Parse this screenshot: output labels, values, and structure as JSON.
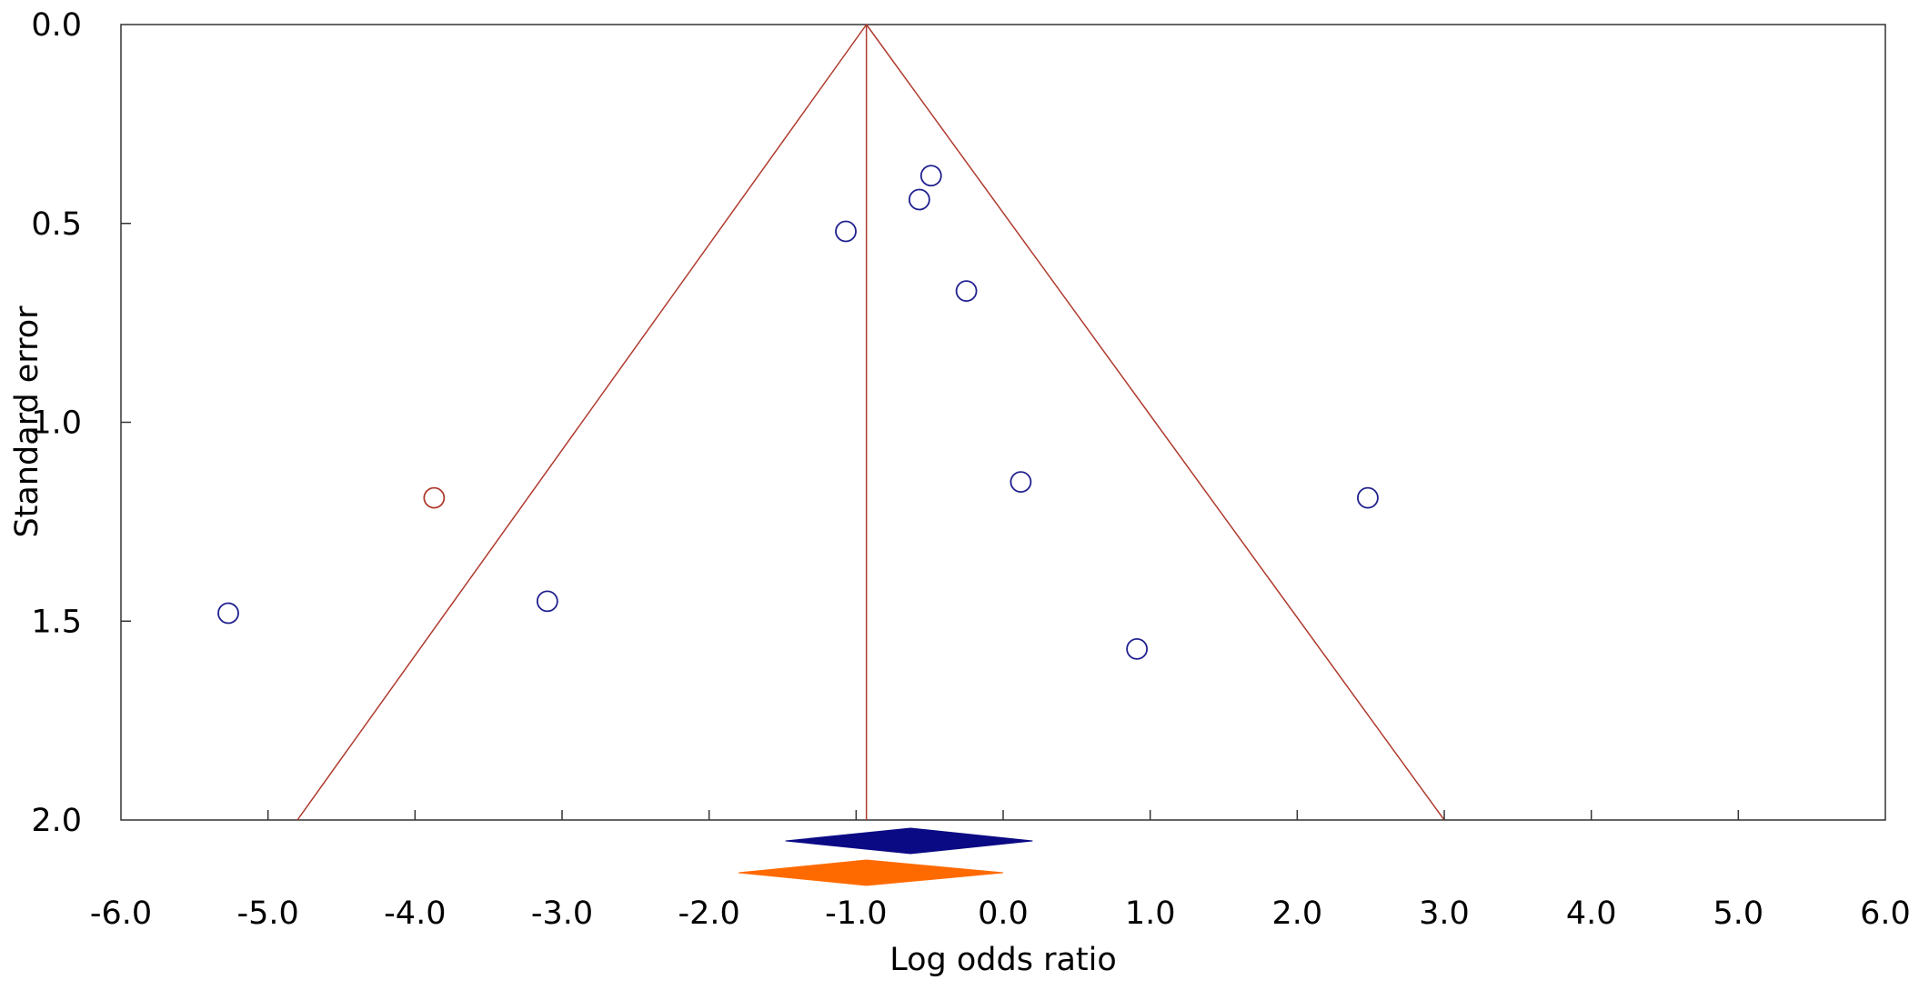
{
  "chart_data": {
    "type": "scatter",
    "subtype": "funnel-plot",
    "title": "",
    "xlabel": "Log odds ratio",
    "ylabel": "Standard error",
    "xlim": [
      -6.0,
      6.0
    ],
    "ylim": [
      0.0,
      2.0
    ],
    "y_inverted": true,
    "x_ticks": [
      "-6.0",
      "-5.0",
      "-4.0",
      "-3.0",
      "-2.0",
      "-1.0",
      "0.0",
      "1.0",
      "2.0",
      "3.0",
      "4.0",
      "5.0",
      "6.0"
    ],
    "y_ticks": [
      "0.0",
      "0.5",
      "1.0",
      "1.5",
      "2.0"
    ],
    "grid": false,
    "pooled_estimate": -0.93,
    "funnel": {
      "apex": [
        -0.93,
        0.0
      ],
      "left_base": [
        -4.8,
        2.0
      ],
      "right_base": [
        3.0,
        2.0
      ],
      "color": "#b03a2e"
    },
    "series": [
      {
        "marker": "open-circle",
        "color": "#1f1f8f",
        "points": [
          {
            "x": -5.27,
            "y": 1.48
          },
          {
            "x": -3.1,
            "y": 1.45
          },
          {
            "x": -1.07,
            "y": 0.52
          },
          {
            "x": -0.57,
            "y": 0.44
          },
          {
            "x": -0.49,
            "y": 0.38
          },
          {
            "x": -0.25,
            "y": 0.67
          },
          {
            "x": 0.12,
            "y": 1.15
          },
          {
            "x": 0.91,
            "y": 1.57
          },
          {
            "x": 2.48,
            "y": 1.19
          }
        ]
      },
      {
        "marker": "open-circle",
        "color": "#b03a2e",
        "points": [
          {
            "x": -3.87,
            "y": 1.19
          }
        ]
      }
    ],
    "summary_diamonds": [
      {
        "color": "#0a0a85",
        "estimate": -0.63,
        "lower": -1.48,
        "upper": 0.2
      },
      {
        "color": "#ff6a00",
        "estimate": -0.93,
        "lower": -1.8,
        "upper": 0.0
      }
    ]
  }
}
